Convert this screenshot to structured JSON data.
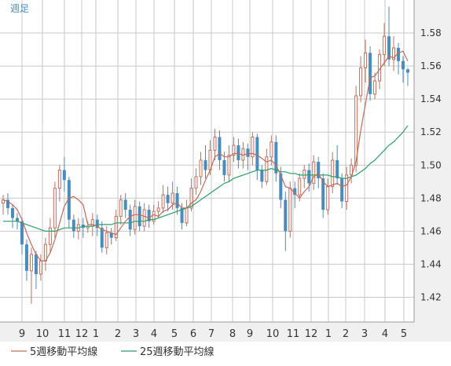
{
  "chart_data": {
    "type": "candlestick",
    "timeframe_label": "週足",
    "ylim": [
      1.405,
      1.6
    ],
    "y_ticks": [
      "1.42",
      "1.44",
      "1.46",
      "1.48",
      "1.50",
      "1.52",
      "1.54",
      "1.56",
      "1.58"
    ],
    "x_ticks": [
      "9",
      "10",
      "11",
      "12",
      "1",
      "2",
      "3",
      "4",
      "5",
      "6",
      "7",
      "8",
      "9",
      "10",
      "11",
      "12",
      "1",
      "2",
      "3",
      "4",
      "5"
    ],
    "grid": true,
    "legend_position": "bottom-left",
    "colors": {
      "up": "#c07060",
      "down": "#4a8cbc",
      "ma5": "#c06a5a",
      "ma25": "#2e9e6a",
      "grid": "#c8c8c8",
      "plot_bg": "#ffffff",
      "axis_bg": "#f0f0f0"
    },
    "series": [
      {
        "name": "5週移動平均線",
        "color": "#c06a5a"
      },
      {
        "name": "25週移動平均線",
        "color": "#2e9e6a"
      }
    ],
    "candles": [
      [
        1.477,
        1.479,
        1.482,
        1.47
      ],
      [
        1.479,
        1.474,
        1.483,
        1.47
      ],
      [
        1.474,
        1.468,
        1.476,
        1.462
      ],
      [
        1.468,
        1.466,
        1.471,
        1.461
      ],
      [
        1.466,
        1.452,
        1.468,
        1.446
      ],
      [
        1.452,
        1.436,
        1.455,
        1.43
      ],
      [
        1.436,
        1.446,
        1.45,
        1.416
      ],
      [
        1.446,
        1.434,
        1.448,
        1.425
      ],
      [
        1.434,
        1.442,
        1.446,
        1.43
      ],
      [
        1.442,
        1.452,
        1.456,
        1.436
      ],
      [
        1.452,
        1.462,
        1.468,
        1.447
      ],
      [
        1.462,
        1.486,
        1.49,
        1.456
      ],
      [
        1.486,
        1.497,
        1.5,
        1.478
      ],
      [
        1.497,
        1.491,
        1.505,
        1.484
      ],
      [
        1.491,
        1.467,
        1.493,
        1.462
      ],
      [
        1.467,
        1.46,
        1.47,
        1.456
      ],
      [
        1.46,
        1.464,
        1.468,
        1.455
      ],
      [
        1.464,
        1.462,
        1.468,
        1.456
      ],
      [
        1.462,
        1.463,
        1.466,
        1.459
      ],
      [
        1.463,
        1.467,
        1.471,
        1.457
      ],
      [
        1.467,
        1.462,
        1.47,
        1.457
      ],
      [
        1.462,
        1.45,
        1.466,
        1.447
      ],
      [
        1.45,
        1.459,
        1.463,
        1.446
      ],
      [
        1.459,
        1.456,
        1.462,
        1.452
      ],
      [
        1.456,
        1.469,
        1.473,
        1.454
      ],
      [
        1.469,
        1.479,
        1.482,
        1.464
      ],
      [
        1.479,
        1.473,
        1.483,
        1.468
      ],
      [
        1.473,
        1.461,
        1.476,
        1.457
      ],
      [
        1.461,
        1.475,
        1.479,
        1.458
      ],
      [
        1.475,
        1.463,
        1.478,
        1.46
      ],
      [
        1.463,
        1.473,
        1.477,
        1.46
      ],
      [
        1.473,
        1.466,
        1.476,
        1.462
      ],
      [
        1.466,
        1.472,
        1.476,
        1.464
      ],
      [
        1.472,
        1.474,
        1.478,
        1.468
      ],
      [
        1.474,
        1.482,
        1.488,
        1.471
      ],
      [
        1.482,
        1.477,
        1.487,
        1.472
      ],
      [
        1.477,
        1.483,
        1.49,
        1.473
      ],
      [
        1.483,
        1.474,
        1.487,
        1.47
      ],
      [
        1.474,
        1.465,
        1.477,
        1.461
      ],
      [
        1.465,
        1.474,
        1.479,
        1.463
      ],
      [
        1.474,
        1.486,
        1.492,
        1.472
      ],
      [
        1.486,
        1.493,
        1.498,
        1.482
      ],
      [
        1.493,
        1.503,
        1.508,
        1.488
      ],
      [
        1.503,
        1.497,
        1.512,
        1.492
      ],
      [
        1.497,
        1.509,
        1.515,
        1.494
      ],
      [
        1.509,
        1.517,
        1.522,
        1.503
      ],
      [
        1.517,
        1.503,
        1.521,
        1.497
      ],
      [
        1.503,
        1.494,
        1.508,
        1.49
      ],
      [
        1.494,
        1.506,
        1.512,
        1.49
      ],
      [
        1.506,
        1.512,
        1.517,
        1.502
      ],
      [
        1.512,
        1.503,
        1.516,
        1.498
      ],
      [
        1.503,
        1.51,
        1.514,
        1.498
      ],
      [
        1.51,
        1.505,
        1.513,
        1.497
      ],
      [
        1.505,
        1.517,
        1.52,
        1.5
      ],
      [
        1.517,
        1.497,
        1.519,
        1.491
      ],
      [
        1.497,
        1.49,
        1.5,
        1.486
      ],
      [
        1.49,
        1.505,
        1.51,
        1.488
      ],
      [
        1.505,
        1.514,
        1.518,
        1.5
      ],
      [
        1.514,
        1.495,
        1.518,
        1.49
      ],
      [
        1.495,
        1.479,
        1.499,
        1.474
      ],
      [
        1.479,
        1.46,
        1.484,
        1.448
      ],
      [
        1.46,
        1.486,
        1.49,
        1.456
      ],
      [
        1.486,
        1.482,
        1.49,
        1.474
      ],
      [
        1.482,
        1.492,
        1.495,
        1.478
      ],
      [
        1.492,
        1.497,
        1.5,
        1.486
      ],
      [
        1.497,
        1.489,
        1.501,
        1.484
      ],
      [
        1.489,
        1.502,
        1.506,
        1.485
      ],
      [
        1.502,
        1.492,
        1.505,
        1.486
      ],
      [
        1.492,
        1.473,
        1.495,
        1.468
      ],
      [
        1.473,
        1.487,
        1.492,
        1.47
      ],
      [
        1.487,
        1.503,
        1.508,
        1.483
      ],
      [
        1.503,
        1.492,
        1.512,
        1.488
      ],
      [
        1.492,
        1.478,
        1.495,
        1.474
      ],
      [
        1.478,
        1.494,
        1.499,
        1.473
      ],
      [
        1.494,
        1.5,
        1.504,
        1.489
      ],
      [
        1.5,
        1.542,
        1.548,
        1.496
      ],
      [
        1.542,
        1.559,
        1.566,
        1.538
      ],
      [
        1.559,
        1.568,
        1.576,
        1.55
      ],
      [
        1.568,
        1.543,
        1.572,
        1.539
      ],
      [
        1.543,
        1.551,
        1.556,
        1.54
      ],
      [
        1.551,
        1.567,
        1.57,
        1.546
      ],
      [
        1.567,
        1.578,
        1.586,
        1.56
      ],
      [
        1.578,
        1.564,
        1.596,
        1.56
      ],
      [
        1.564,
        1.571,
        1.578,
        1.557
      ],
      [
        1.571,
        1.563,
        1.574,
        1.555
      ],
      [
        1.563,
        1.558,
        1.566,
        1.55
      ],
      [
        1.558,
        1.556,
        1.559,
        1.548
      ]
    ],
    "ma5": [
      1.479,
      1.478,
      1.476,
      1.473,
      1.467,
      1.459,
      1.452,
      1.446,
      1.442,
      1.442,
      1.447,
      1.455,
      1.465,
      1.475,
      1.48,
      1.481,
      1.479,
      1.476,
      1.464,
      1.464,
      1.463,
      1.461,
      1.46,
      1.459,
      1.458,
      1.462,
      1.466,
      1.469,
      1.47,
      1.47,
      1.469,
      1.468,
      1.47,
      1.469,
      1.472,
      1.473,
      1.476,
      1.477,
      1.474,
      1.474,
      1.477,
      1.479,
      1.484,
      1.491,
      1.497,
      1.505,
      1.507,
      1.505,
      1.505,
      1.507,
      1.507,
      1.506,
      1.507,
      1.507,
      1.506,
      1.504,
      1.502,
      1.503,
      1.5,
      1.494,
      1.487,
      1.486,
      1.483,
      1.48,
      1.484,
      1.487,
      1.493,
      1.495,
      1.49,
      1.487,
      1.488,
      1.489,
      1.487,
      1.488,
      1.493,
      1.502,
      1.521,
      1.537,
      1.553,
      1.554,
      1.558,
      1.562,
      1.566,
      1.565,
      1.568,
      1.569,
      1.563
    ],
    "ma25": [
      1.466,
      1.466,
      1.466,
      1.466,
      1.465,
      1.464,
      1.463,
      1.462,
      1.461,
      1.46,
      1.46,
      1.46,
      1.461,
      1.462,
      1.462,
      1.462,
      1.462,
      1.463,
      1.463,
      1.463,
      1.464,
      1.464,
      1.464,
      1.464,
      1.465,
      1.465,
      1.465,
      1.465,
      1.466,
      1.466,
      1.466,
      1.467,
      1.467,
      1.468,
      1.469,
      1.47,
      1.471,
      1.472,
      1.473,
      1.474,
      1.475,
      1.477,
      1.479,
      1.481,
      1.483,
      1.485,
      1.487,
      1.489,
      1.49,
      1.492,
      1.493,
      1.494,
      1.495,
      1.496,
      1.497,
      1.497,
      1.497,
      1.498,
      1.497,
      1.496,
      1.496,
      1.495,
      1.495,
      1.494,
      1.494,
      1.494,
      1.494,
      1.494,
      1.494,
      1.494,
      1.493,
      1.493,
      1.492,
      1.492,
      1.493,
      1.494,
      1.496,
      1.498,
      1.501,
      1.503,
      1.506,
      1.509,
      1.512,
      1.514,
      1.517,
      1.52,
      1.524
    ]
  }
}
